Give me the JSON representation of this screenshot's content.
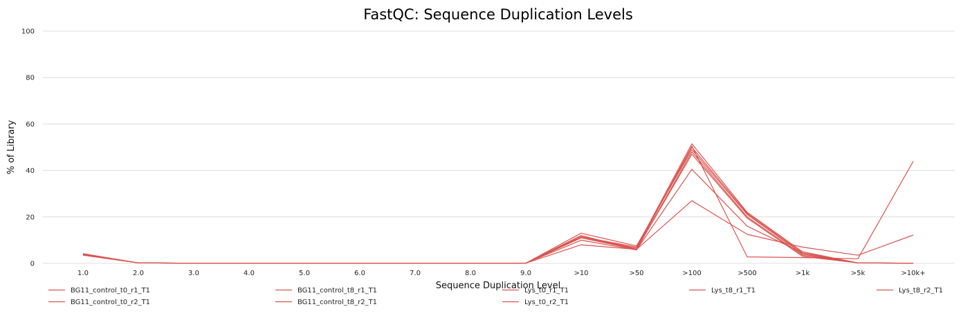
{
  "chart_data": {
    "type": "line",
    "title": "FastQC: Sequence Duplication Levels",
    "xlabel": "Sequence Duplication Level",
    "ylabel": "% of Library",
    "ylim": [
      0,
      100
    ],
    "yticks": [
      0,
      20,
      40,
      60,
      80,
      100
    ],
    "grid": true,
    "legend_position": "bottom",
    "line_color": "#d9534f",
    "categories": [
      "1.0",
      "2.0",
      "3.0",
      "4.0",
      "5.0",
      "6.0",
      "7.0",
      "8.0",
      "9.0",
      ">10",
      ">50",
      ">100",
      ">500",
      ">1k",
      ">5k",
      ">10k+"
    ],
    "series": [
      {
        "name": "BG11_control_t0_r1_T1",
        "values": [
          4.0,
          0.2,
          0.1,
          0.1,
          0.1,
          0.1,
          0.1,
          0.1,
          0.1,
          11.5,
          7.0,
          51.5,
          22.0,
          5.0,
          0.2,
          0.1
        ]
      },
      {
        "name": "BG11_control_t0_r2_T1",
        "values": [
          4.2,
          0.2,
          0.1,
          0.1,
          0.1,
          0.1,
          0.1,
          0.1,
          0.1,
          11.0,
          6.5,
          50.0,
          21.5,
          4.5,
          0.2,
          0.1
        ]
      },
      {
        "name": "BG11_control_t8_r1_T1",
        "values": [
          3.8,
          0.2,
          0.1,
          0.1,
          0.1,
          0.1,
          0.1,
          0.1,
          0.1,
          13.0,
          7.5,
          49.0,
          21.0,
          4.0,
          0.2,
          0.1
        ]
      },
      {
        "name": "BG11_control_t8_r2_T1",
        "values": [
          3.9,
          0.2,
          0.1,
          0.1,
          0.1,
          0.1,
          0.1,
          0.1,
          0.1,
          12.0,
          6.0,
          48.0,
          20.0,
          3.5,
          0.2,
          0.1
        ]
      },
      {
        "name": "Lys_t0_r1_T1",
        "values": [
          4.1,
          0.2,
          0.1,
          0.1,
          0.1,
          0.1,
          0.1,
          0.1,
          0.1,
          11.0,
          6.0,
          47.0,
          19.5,
          3.0,
          0.2,
          0.1
        ]
      },
      {
        "name": "Lys_t0_r2_T1",
        "values": [
          3.7,
          0.2,
          0.1,
          0.1,
          0.1,
          0.1,
          0.1,
          0.1,
          0.1,
          10.0,
          5.8,
          40.5,
          16.0,
          4.5,
          0.2,
          0.1
        ]
      },
      {
        "name": "Lys_t8_r1_T1",
        "values": [
          3.6,
          0.2,
          0.1,
          0.1,
          0.1,
          0.1,
          0.1,
          0.1,
          0.1,
          8.0,
          6.0,
          27.0,
          12.5,
          7.0,
          3.5,
          12.2
        ]
      },
      {
        "name": "Lys_t8_r2_T1",
        "values": [
          3.5,
          0.2,
          0.1,
          0.1,
          0.1,
          0.1,
          0.1,
          0.1,
          0.1,
          11.5,
          6.5,
          50.5,
          2.8,
          2.5,
          2.0,
          44.0
        ]
      }
    ]
  }
}
